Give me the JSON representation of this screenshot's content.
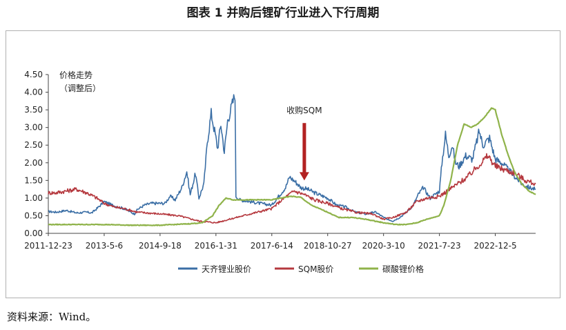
{
  "title": "图表 1  并购后锂矿行业进入下行周期",
  "source": "资料来源：Wind。",
  "chart_data": {
    "type": "line",
    "ylabel_lines": [
      "价格走势",
      "（调整后）"
    ],
    "ylim": [
      0,
      4.5
    ],
    "yticks": [
      0.0,
      0.5,
      1.0,
      1.5,
      2.0,
      2.5,
      3.0,
      3.5,
      4.0,
      4.5
    ],
    "ytick_labels": [
      "0.00",
      "0.50",
      "1.00",
      "1.50",
      "2.00",
      "2.50",
      "3.00",
      "3.50",
      "4.00",
      "4.50"
    ],
    "xlim": [
      "2011-12-23",
      "2023-12-01"
    ],
    "xtick_labels": [
      "2011-12-23",
      "2013-5-6",
      "2014-9-18",
      "2016-1-31",
      "2017-6-14",
      "2018-10-27",
      "2020-3-10",
      "2021-7-23",
      "2022-12-5"
    ],
    "legend_position": "bottom",
    "grid": false,
    "annotation": {
      "text": "收购SQM",
      "x": "2018-04-01",
      "y_top": 1.5,
      "y_text": 3.4,
      "color": "#b22222"
    },
    "series": [
      {
        "name": "天齐锂业股价",
        "color": "#3a6ea5",
        "points": [
          [
            "2011-12-23",
            0.62
          ],
          [
            "2012-03-01",
            0.6
          ],
          [
            "2012-06-01",
            0.65
          ],
          [
            "2012-09-01",
            0.58
          ],
          [
            "2012-12-01",
            0.6
          ],
          [
            "2013-01-15",
            0.58
          ],
          [
            "2013-03-01",
            0.7
          ],
          [
            "2013-05-06",
            0.9
          ],
          [
            "2013-07-01",
            0.82
          ],
          [
            "2013-09-01",
            0.75
          ],
          [
            "2013-11-01",
            0.7
          ],
          [
            "2014-01-01",
            0.6
          ],
          [
            "2014-02-01",
            0.55
          ],
          [
            "2014-03-01",
            0.68
          ],
          [
            "2014-05-01",
            0.8
          ],
          [
            "2014-07-01",
            0.85
          ],
          [
            "2014-09-18",
            0.85
          ],
          [
            "2014-11-01",
            0.85
          ],
          [
            "2014-12-15",
            1.05
          ],
          [
            "2015-02-01",
            0.95
          ],
          [
            "2015-04-01",
            1.3
          ],
          [
            "2015-05-15",
            1.75
          ],
          [
            "2015-06-15",
            1.1
          ],
          [
            "2015-08-01",
            1.7
          ],
          [
            "2015-09-01",
            1.0
          ],
          [
            "2015-10-15",
            1.4
          ],
          [
            "2015-11-15",
            2.6
          ],
          [
            "2015-12-20",
            3.4
          ],
          [
            "2016-01-31",
            2.7
          ],
          [
            "2016-02-15",
            2.4
          ],
          [
            "2016-03-15",
            3.1
          ],
          [
            "2016-04-15",
            2.3
          ],
          [
            "2016-05-15",
            3.2
          ],
          [
            "2016-06-20",
            3.6
          ],
          [
            "2016-07-20",
            3.95
          ],
          [
            "2016-07-28",
            1.05
          ],
          [
            "2016-09-01",
            0.95
          ],
          [
            "2016-12-01",
            0.9
          ],
          [
            "2017-03-01",
            0.85
          ],
          [
            "2017-06-14",
            0.8
          ],
          [
            "2017-08-01",
            1.0
          ],
          [
            "2017-10-15",
            1.3
          ],
          [
            "2017-11-20",
            1.6
          ],
          [
            "2018-01-15",
            1.45
          ],
          [
            "2018-03-01",
            1.3
          ],
          [
            "2018-05-01",
            1.25
          ],
          [
            "2018-07-01",
            1.15
          ],
          [
            "2018-10-27",
            1.0
          ],
          [
            "2019-01-15",
            0.8
          ],
          [
            "2019-04-01",
            0.75
          ],
          [
            "2019-07-01",
            0.6
          ],
          [
            "2019-10-01",
            0.55
          ],
          [
            "2020-01-01",
            0.6
          ],
          [
            "2020-03-10",
            0.45
          ],
          [
            "2020-04-15",
            0.4
          ],
          [
            "2020-06-01",
            0.35
          ],
          [
            "2020-08-01",
            0.45
          ],
          [
            "2020-10-01",
            0.6
          ],
          [
            "2020-12-01",
            0.8
          ],
          [
            "2021-01-15",
            1.1
          ],
          [
            "2021-03-01",
            1.3
          ],
          [
            "2021-05-01",
            1.0
          ],
          [
            "2021-07-23",
            1.2
          ],
          [
            "2021-08-15",
            2.0
          ],
          [
            "2021-09-15",
            2.8
          ],
          [
            "2021-10-15",
            2.2
          ],
          [
            "2021-11-15",
            2.5
          ],
          [
            "2021-12-15",
            2.0
          ],
          [
            "2022-01-15",
            1.9
          ],
          [
            "2022-03-15",
            2.2
          ],
          [
            "2022-05-15",
            2.1
          ],
          [
            "2022-07-15",
            2.9
          ],
          [
            "2022-08-15",
            2.5
          ],
          [
            "2022-10-15",
            2.7
          ],
          [
            "2022-12-05",
            2.1
          ],
          [
            "2023-02-01",
            2.0
          ],
          [
            "2023-04-01",
            1.8
          ],
          [
            "2023-06-01",
            1.6
          ],
          [
            "2023-08-01",
            1.4
          ],
          [
            "2023-10-01",
            1.3
          ],
          [
            "2023-12-01",
            1.25
          ]
        ]
      },
      {
        "name": "SQM股价",
        "color": "#b5383e",
        "points": [
          [
            "2011-12-23",
            1.15
          ],
          [
            "2012-03-01",
            1.15
          ],
          [
            "2012-06-01",
            1.2
          ],
          [
            "2012-09-01",
            1.25
          ],
          [
            "2012-12-01",
            1.15
          ],
          [
            "2013-03-01",
            1.0
          ],
          [
            "2013-05-06",
            0.85
          ],
          [
            "2013-08-01",
            0.75
          ],
          [
            "2013-11-01",
            0.7
          ],
          [
            "2014-03-01",
            0.6
          ],
          [
            "2014-09-18",
            0.55
          ],
          [
            "2015-03-01",
            0.5
          ],
          [
            "2015-09-01",
            0.35
          ],
          [
            "2016-01-31",
            0.3
          ],
          [
            "2016-06-01",
            0.4
          ],
          [
            "2016-12-01",
            0.55
          ],
          [
            "2017-06-14",
            0.7
          ],
          [
            "2017-10-01",
            1.0
          ],
          [
            "2018-01-01",
            1.2
          ],
          [
            "2018-04-01",
            1.1
          ],
          [
            "2018-07-01",
            0.95
          ],
          [
            "2018-10-27",
            0.85
          ],
          [
            "2019-03-01",
            0.7
          ],
          [
            "2019-07-01",
            0.6
          ],
          [
            "2019-12-01",
            0.55
          ],
          [
            "2020-03-10",
            0.4
          ],
          [
            "2020-06-01",
            0.45
          ],
          [
            "2020-10-01",
            0.6
          ],
          [
            "2021-01-01",
            0.9
          ],
          [
            "2021-04-01",
            1.0
          ],
          [
            "2021-07-23",
            1.05
          ],
          [
            "2021-10-01",
            1.2
          ],
          [
            "2022-01-01",
            1.4
          ],
          [
            "2022-04-01",
            1.6
          ],
          [
            "2022-07-01",
            1.9
          ],
          [
            "2022-10-01",
            2.2
          ],
          [
            "2022-12-05",
            1.9
          ],
          [
            "2023-03-01",
            1.8
          ],
          [
            "2023-06-01",
            1.7
          ],
          [
            "2023-09-01",
            1.5
          ],
          [
            "2023-12-01",
            1.4
          ]
        ]
      },
      {
        "name": "碳酸锂价格",
        "color": "#8fb34a",
        "points": [
          [
            "2011-12-23",
            0.25
          ],
          [
            "2012-06-01",
            0.25
          ],
          [
            "2013-01-01",
            0.25
          ],
          [
            "2013-05-06",
            0.25
          ],
          [
            "2014-01-01",
            0.23
          ],
          [
            "2014-09-18",
            0.23
          ],
          [
            "2015-06-01",
            0.27
          ],
          [
            "2015-10-01",
            0.3
          ],
          [
            "2016-01-01",
            0.5
          ],
          [
            "2016-03-01",
            0.8
          ],
          [
            "2016-05-01",
            1.0
          ],
          [
            "2016-07-01",
            0.95
          ],
          [
            "2016-10-01",
            0.95
          ],
          [
            "2017-01-01",
            0.95
          ],
          [
            "2017-06-14",
            0.95
          ],
          [
            "2017-09-01",
            1.0
          ],
          [
            "2017-12-01",
            1.05
          ],
          [
            "2018-03-01",
            1.02
          ],
          [
            "2018-06-01",
            0.8
          ],
          [
            "2018-10-27",
            0.6
          ],
          [
            "2019-02-01",
            0.45
          ],
          [
            "2019-06-01",
            0.45
          ],
          [
            "2019-10-01",
            0.4
          ],
          [
            "2020-03-10",
            0.3
          ],
          [
            "2020-07-01",
            0.25
          ],
          [
            "2020-10-01",
            0.25
          ],
          [
            "2021-01-01",
            0.3
          ],
          [
            "2021-04-01",
            0.4
          ],
          [
            "2021-07-23",
            0.5
          ],
          [
            "2021-09-01",
            0.8
          ],
          [
            "2021-11-01",
            1.5
          ],
          [
            "2022-01-01",
            2.5
          ],
          [
            "2022-03-01",
            3.1
          ],
          [
            "2022-05-01",
            3.0
          ],
          [
            "2022-07-01",
            3.1
          ],
          [
            "2022-09-01",
            3.3
          ],
          [
            "2022-11-01",
            3.55
          ],
          [
            "2022-12-05",
            3.5
          ],
          [
            "2023-02-01",
            2.8
          ],
          [
            "2023-04-01",
            2.2
          ],
          [
            "2023-06-01",
            1.7
          ],
          [
            "2023-08-01",
            1.4
          ],
          [
            "2023-10-01",
            1.2
          ],
          [
            "2023-12-01",
            1.1
          ]
        ]
      }
    ]
  }
}
